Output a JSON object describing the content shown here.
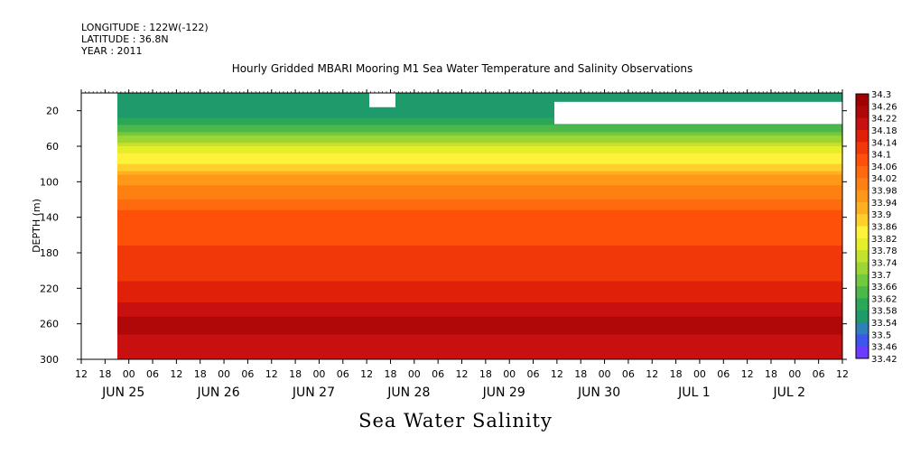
{
  "header": {
    "longitude": "LONGITUDE : 122W(-122)",
    "latitude": "LATITUDE : 36.8N",
    "year": "YEAR : 2011"
  },
  "colors": {
    "scale": [
      "#c800ff",
      "#9b30ff",
      "#6a3cff",
      "#3e55ee",
      "#2f7fb8",
      "#1f9a6a",
      "#2aa858",
      "#4cb84a",
      "#72c83e",
      "#9bd634",
      "#c2e22e",
      "#e6ee2a",
      "#fff23a",
      "#ffd02a",
      "#ffb020",
      "#ff9818",
      "#ff8012",
      "#ff6a0e",
      "#ff500a",
      "#f03808",
      "#e02008",
      "#c81010",
      "#b00808",
      "#a00000"
    ],
    "missing": "#ffffff"
  },
  "chart_data": {
    "type": "heatmap",
    "title": "Hourly Gridded MBARI Mooring M1 Sea Water Temperature and Salinity Observations",
    "xlabel": "",
    "ylabel": "DEPTH (m)",
    "subtitle": "Sea Water Salinity",
    "ylim": [
      300,
      0
    ],
    "y_ticks": [
      20,
      60,
      100,
      140,
      180,
      220,
      260,
      300
    ],
    "x_hour_ticks": [
      "12",
      "18",
      "00",
      "06",
      "12",
      "18",
      "00",
      "06",
      "12",
      "18",
      "00",
      "06",
      "12",
      "18",
      "00",
      "06",
      "12",
      "18",
      "00",
      "06",
      "12",
      "18",
      "00",
      "06",
      "12",
      "18",
      "00",
      "06",
      "12",
      "18",
      "00",
      "06",
      "12"
    ],
    "x_day_labels": [
      "JUN 25",
      "JUN 26",
      "JUN 27",
      "JUN 28",
      "JUN 29",
      "JUN 30",
      "JUL  1",
      "JUL  2"
    ],
    "colorbar_levels": [
      "34.3",
      "34.26",
      "34.22",
      "34.18",
      "34.14",
      "34.1",
      "34.06",
      "34.02",
      "33.98",
      "33.94",
      "33.9",
      "33.86",
      "33.82",
      "33.78",
      "33.74",
      "33.7",
      "33.66",
      "33.62",
      "33.58",
      "33.54",
      "33.5",
      "33.46",
      "33.42"
    ],
    "depth_profile": [
      {
        "depth": 10,
        "salinity": 33.62
      },
      {
        "depth": 20,
        "salinity": 33.6
      },
      {
        "depth": 40,
        "salinity": 33.7
      },
      {
        "depth": 60,
        "salinity": 33.82
      },
      {
        "depth": 80,
        "salinity": 33.9
      },
      {
        "depth": 100,
        "salinity": 34.0
      },
      {
        "depth": 120,
        "salinity": 34.04
      },
      {
        "depth": 140,
        "salinity": 34.1
      },
      {
        "depth": 180,
        "salinity": 34.12
      },
      {
        "depth": 220,
        "salinity": 34.16
      },
      {
        "depth": 260,
        "salinity": 34.24
      },
      {
        "depth": 300,
        "salinity": 34.2
      }
    ]
  }
}
